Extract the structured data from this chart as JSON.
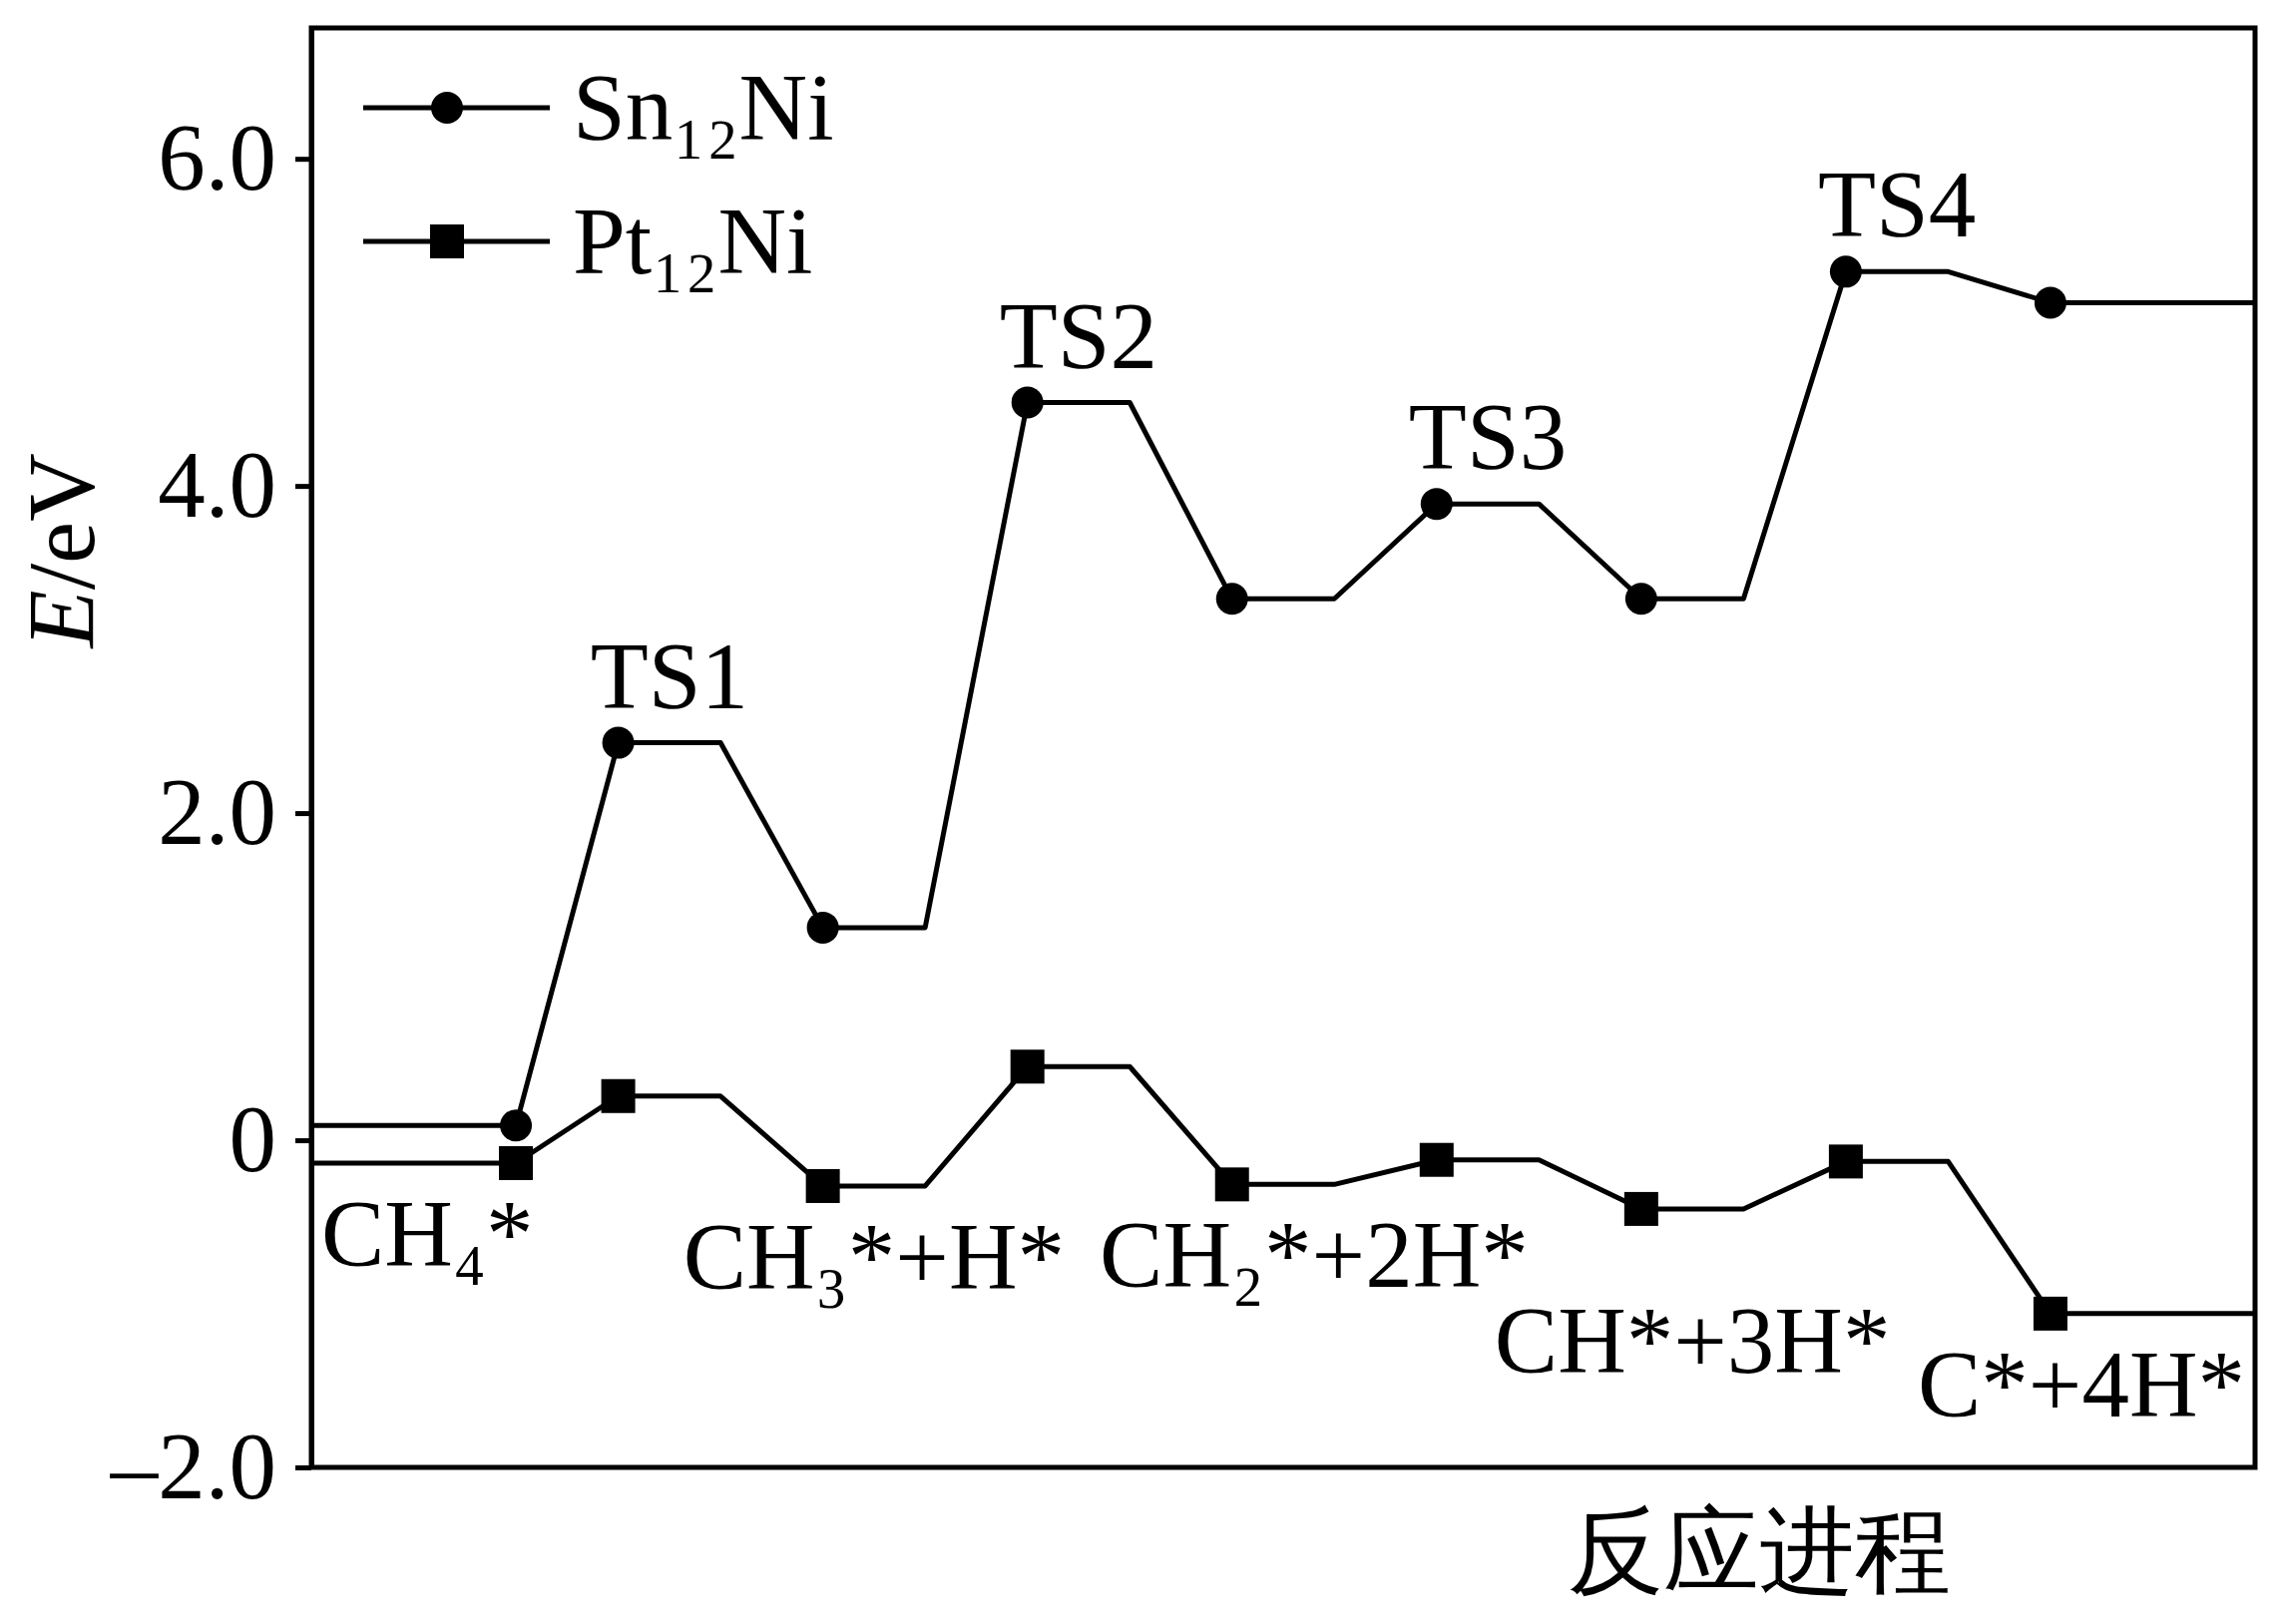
{
  "chart_data": {
    "type": "line",
    "xlabel": "反应进程",
    "ylabel": "E/eV",
    "categories": [
      null,
      null,
      null,
      null,
      null,
      null,
      null,
      null,
      null,
      null,
      null,
      null,
      null,
      null,
      null,
      null,
      null,
      null,
      null,
      null
    ],
    "ylim": [
      -2,
      6.8
    ],
    "yticks": [
      {
        "value": 6,
        "label": "6.0"
      },
      {
        "value": 4,
        "label": "4.0"
      },
      {
        "value": 2,
        "label": "2.0"
      },
      0,
      {
        "value": -2,
        "label": "–2.0"
      }
    ],
    "tick_labels": "y",
    "legend": "top left",
    "line_style": "solid",
    "series": [
      {
        "name": "Sn₁₂Ni",
        "color": "#000000",
        "values": [
          0.09,
          0.09,
          0.09,
          2.43,
          2.43,
          1.3,
          1.3,
          4.51,
          4.51,
          3.31,
          3.31,
          3.89,
          3.89,
          3.31,
          3.31,
          5.31,
          5.31,
          5.12,
          5.12,
          5.12
        ]
      },
      {
        "type": "scatter",
        "color": "#000000",
        "marker": "circle",
        "values": [
          null,
          null,
          0.09,
          2.43,
          null,
          1.3,
          null,
          4.51,
          null,
          3.31,
          null,
          3.89,
          null,
          3.31,
          null,
          5.31,
          null,
          5.12,
          null,
          null
        ]
      },
      {
        "name": "Pt₁₂Ni",
        "color": "#000000",
        "values": [
          -0.14,
          -0.14,
          -0.14,
          0.27,
          0.27,
          -0.28,
          -0.28,
          0.45,
          0.45,
          -0.27,
          -0.27,
          -0.12,
          -0.12,
          -0.42,
          -0.42,
          -0.13,
          -0.13,
          -1.06,
          -1.06,
          -1.06
        ]
      },
      {
        "type": "scatter",
        "color": "#000000",
        "marker": "square",
        "values": [
          null,
          null,
          -0.14,
          0.27,
          null,
          -0.28,
          null,
          0.45,
          null,
          -0.27,
          null,
          -0.12,
          null,
          -0.42,
          null,
          -0.13,
          null,
          -1.06,
          null,
          null
        ]
      }
    ],
    "annotations": [
      {
        "text": "TS1",
        "y": 2.43
      },
      {
        "text": "TS2",
        "y": 4.51
      },
      {
        "text": "TS3",
        "y": 3.89
      },
      {
        "text": "TS4",
        "y": 5.31
      },
      {
        "text": "CH₄*",
        "y": -0.14
      },
      {
        "text": "CH₃*+H*",
        "y": -0.28
      },
      {
        "text": "CH₂*+2H*",
        "y": -0.27
      },
      {
        "text": "CH*+3H*",
        "y": -0.42
      },
      {
        "text": "C*+4H*",
        "y": -1.06
      }
    ]
  }
}
